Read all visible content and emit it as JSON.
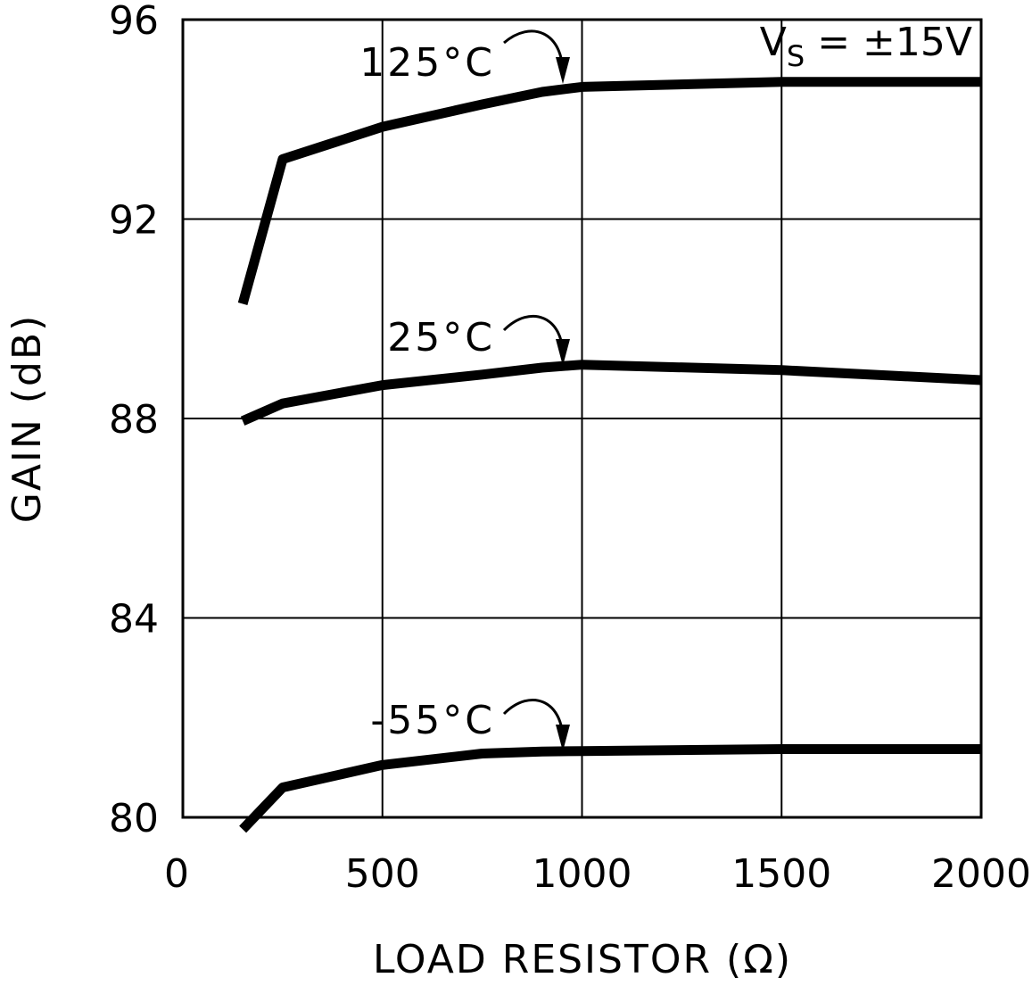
{
  "chart_data": {
    "type": "line",
    "xlabel": "LOAD RESISTOR (Ω)",
    "ylabel": "GAIN (dB)",
    "xlim": [
      0,
      2000
    ],
    "xticks": [
      0,
      500,
      1000,
      1500,
      2000
    ],
    "ylim": [
      80,
      96
    ],
    "yticks": [
      80,
      84,
      88,
      92,
      96
    ],
    "grid": true,
    "x": [
      150,
      250,
      500,
      750,
      900,
      1000,
      1500,
      2000
    ],
    "series": [
      {
        "name": "125°C",
        "color": "#000000",
        "values": [
          90.3,
          93.2,
          93.85,
          94.3,
          94.55,
          94.65,
          94.75,
          94.75
        ]
      },
      {
        "name": "25°C",
        "color": "#000000",
        "values": [
          87.95,
          88.3,
          88.67,
          88.88,
          89.02,
          89.08,
          88.97,
          88.77
        ]
      },
      {
        "name": "-55°C",
        "color": "#000000",
        "values": [
          79.76,
          80.6,
          81.05,
          81.28,
          81.32,
          81.33,
          81.37,
          81.37
        ]
      }
    ],
    "annotation": {
      "symbol": "V",
      "subscript": "S",
      "text": " = ±15V"
    }
  }
}
